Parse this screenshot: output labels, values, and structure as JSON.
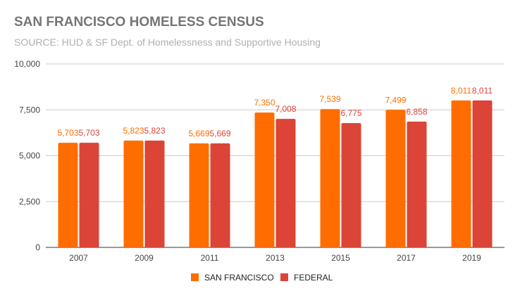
{
  "chart_data": {
    "type": "bar",
    "title": "SAN FRANCISCO HOMELESS CENSUS",
    "subtitle": "SOURCE: HUD & SF Dept. of Homelessness and Supportive Housing",
    "categories": [
      "2007",
      "2009",
      "2011",
      "2013",
      "2015",
      "2017",
      "2019"
    ],
    "series": [
      {
        "name": "SAN FRANCISCO",
        "color": "#ff6d00",
        "values": [
          5703,
          5823,
          5669,
          7350,
          7539,
          7499,
          8011
        ],
        "labels": [
          "5,703",
          "5,823",
          "5,669",
          "7,350",
          "7,539",
          "7,499",
          "8,011"
        ]
      },
      {
        "name": "FEDERAL",
        "color": "#db4437",
        "values": [
          5703,
          5823,
          5669,
          7008,
          6775,
          6858,
          8011
        ],
        "labels": [
          "5,703",
          "5,823",
          "5,669",
          "7,008",
          "6,775",
          "6,858",
          "8,011"
        ]
      }
    ],
    "ylim": [
      0,
      10000
    ],
    "yticks": [
      0,
      2500,
      5000,
      7500,
      10000
    ],
    "ytick_labels": [
      "0",
      "2,500",
      "5,000",
      "7,500",
      "10,000"
    ],
    "grid": true,
    "legend_position": "bottom"
  }
}
